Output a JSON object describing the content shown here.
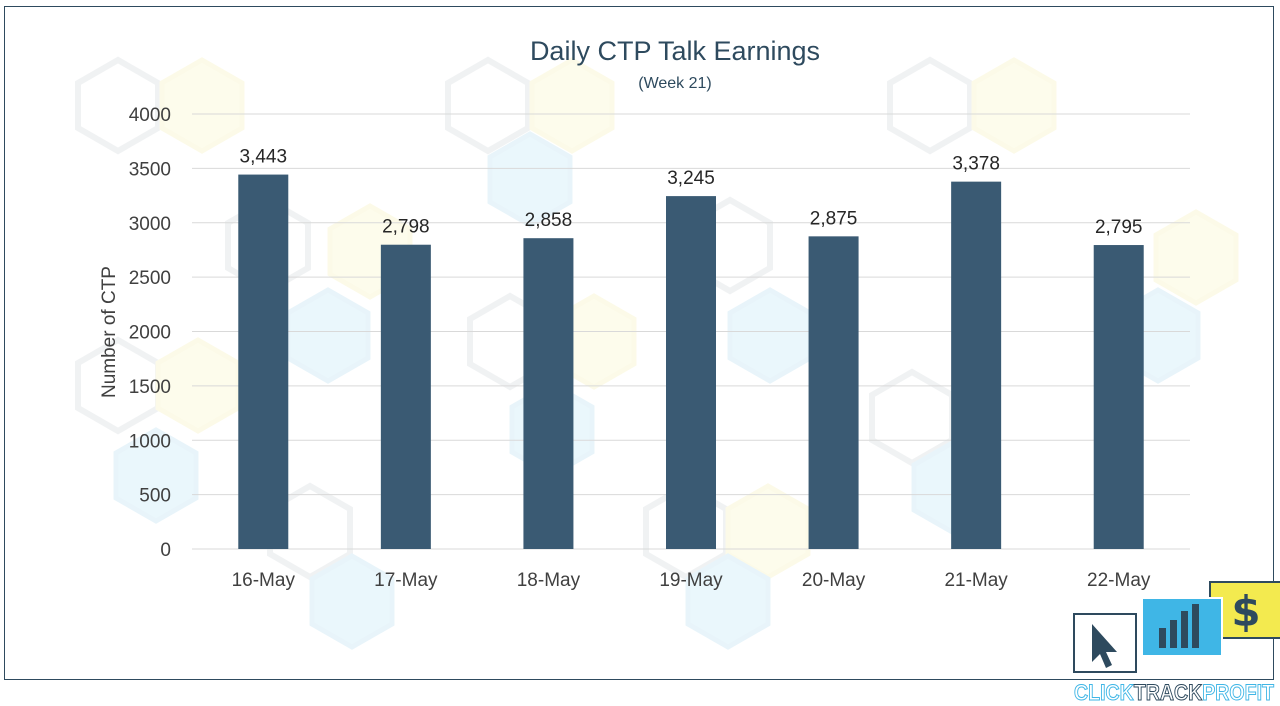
{
  "chart_data": {
    "type": "bar",
    "title": "Daily CTP Talk Earnings",
    "subtitle": "(Week 21)",
    "xlabel": "",
    "ylabel": "Number of CTP",
    "categories": [
      "16-May",
      "17-May",
      "18-May",
      "19-May",
      "20-May",
      "21-May",
      "22-May"
    ],
    "values": [
      3443,
      2798,
      2858,
      3245,
      2875,
      3378,
      2795
    ],
    "data_labels": [
      "3,443",
      "2,798",
      "2,858",
      "3,245",
      "2,875",
      "3,378",
      "2,795"
    ],
    "ylim": [
      0,
      4000
    ],
    "yticks": [
      "0",
      "500",
      "1000",
      "1500",
      "2000",
      "2500",
      "3000",
      "3500",
      "4000"
    ],
    "grid": true,
    "bar_color": "#3a5a73"
  },
  "brand": {
    "logo_text_part1": "CLICK",
    "logo_text_part2": "TRACK",
    "logo_text_part3": "PROFIT",
    "colors": {
      "navy": "#2e4a5e",
      "blue": "#3fb6e6",
      "yellow": "#f3ea4f"
    }
  }
}
